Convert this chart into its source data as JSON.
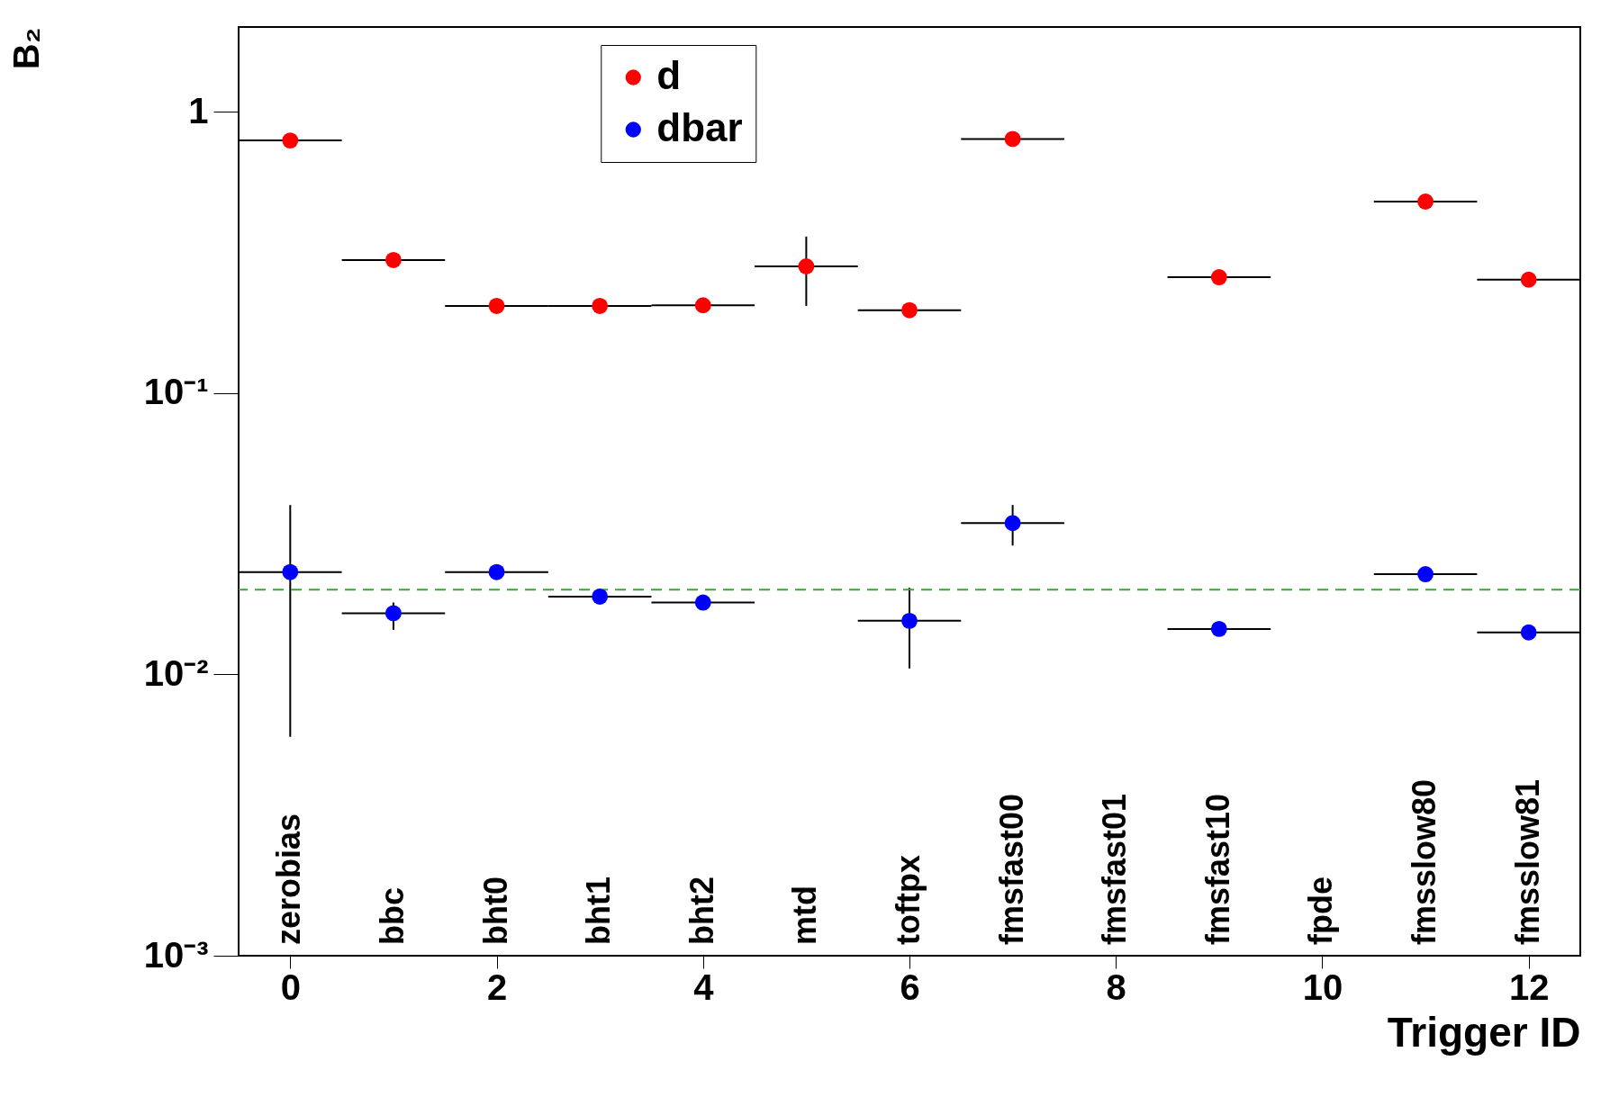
{
  "chart_data": {
    "type": "scatter",
    "xlabel": "Trigger ID",
    "ylabel": "B₂",
    "x": [
      0,
      1,
      2,
      3,
      4,
      5,
      6,
      7,
      8,
      9,
      10,
      11,
      12
    ],
    "series": [
      {
        "name": "d",
        "color": "#ff0000",
        "values": [
          0.79,
          0.297,
          0.204,
          0.204,
          0.205,
          0.282,
          0.197,
          0.8,
          null,
          0.258,
          null,
          0.479,
          0.253
        ],
        "errors": [
          null,
          null,
          null,
          null,
          null,
          [
            0.204,
            0.36
          ],
          null,
          null,
          null,
          null,
          null,
          null,
          null
        ],
        "xerrors": [
          0.5,
          0.5,
          0.5,
          0.5,
          0.5,
          0.5,
          0.5,
          0.5,
          null,
          0.5,
          null,
          0.5,
          0.5
        ]
      },
      {
        "name": "dbar",
        "color": "#0000ff",
        "values": [
          0.0231,
          0.0165,
          0.0231,
          0.0189,
          0.018,
          null,
          0.0155,
          0.0345,
          null,
          0.0145,
          null,
          0.0227,
          0.0141
        ],
        "errors": [
          [
            0.006,
            0.04
          ],
          [
            0.0144,
            0.018
          ],
          null,
          null,
          null,
          null,
          [
            0.0105,
            0.0203
          ],
          [
            0.0287,
            0.04
          ],
          null,
          null,
          null,
          null,
          null
        ],
        "xerrors": [
          0.5,
          0.5,
          0.5,
          0.5,
          0.5,
          null,
          0.5,
          0.5,
          null,
          0.5,
          null,
          0.5,
          0.5
        ]
      }
    ],
    "ref_lines": [
      {
        "axis": "y",
        "value": 0.02,
        "color": "#33aa33",
        "line_style": "dashed"
      }
    ],
    "annotations": [
      "zerobias",
      "bbc",
      "bht0",
      "bht1",
      "bht2",
      "mtd",
      "toftpx",
      "fmsfast00",
      "fmsfast01",
      "fmsfast10",
      "fpde",
      "fmsslow80",
      "fmsslow81"
    ],
    "xlim": [
      -0.5,
      12.5
    ],
    "xticks": [
      0,
      2,
      4,
      6,
      8,
      10,
      12
    ],
    "ylim": [
      0.001,
      2
    ],
    "yticks": [
      {
        "value": 0.001,
        "label": "10⁻³"
      },
      {
        "value": 0.01,
        "label": "10⁻²"
      },
      {
        "value": 0.1,
        "label": "10⁻¹"
      },
      1
    ],
    "log": true,
    "grid": false,
    "legend": "top",
    "marker": "circle"
  }
}
